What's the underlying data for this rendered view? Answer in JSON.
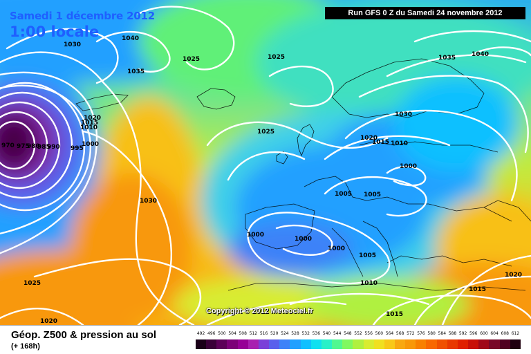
{
  "header": {
    "date": "Samedi 1 décembre 2012",
    "local_time": "1:00 locale",
    "run_info": "Run GFS 0 Z du Samedi 24 novembre 2012"
  },
  "copyright": "Copyright © 2012 Meteociel.fr",
  "footer": {
    "title": "Géop. Z500 & pression au sol",
    "lead_time": "(+ 168h)"
  },
  "scale": {
    "labels": [
      "492",
      "496",
      "500",
      "504",
      "508",
      "512",
      "516",
      "520",
      "524",
      "528",
      "532",
      "536",
      "540",
      "544",
      "548",
      "552",
      "556",
      "560",
      "564",
      "568",
      "572",
      "576",
      "580",
      "584",
      "588",
      "592",
      "596",
      "600",
      "604",
      "608",
      "612"
    ],
    "colors": [
      "#1a0018",
      "#3a0038",
      "#5c0058",
      "#7c0078",
      "#960096",
      "#a820b0",
      "#7a40d8",
      "#5a60ec",
      "#3e82f8",
      "#20a0ff",
      "#10c0ff",
      "#10e0f0",
      "#28f0c8",
      "#50f890",
      "#80f860",
      "#b0f040",
      "#d8ec30",
      "#f0e020",
      "#f8c818",
      "#f8a810",
      "#f89808",
      "#f88000",
      "#f86800",
      "#f05000",
      "#e83800",
      "#e02000",
      "#c81008",
      "#a00818",
      "#780828",
      "#500020",
      "#200010"
    ]
  },
  "isobar_labels": [
    {
      "text": "1030",
      "kind": "pressure"
    },
    {
      "text": "1040",
      "kind": "pressure"
    },
    {
      "text": "1035",
      "kind": "pressure"
    },
    {
      "text": "1025",
      "kind": "pressure"
    },
    {
      "text": "1025",
      "kind": "pressure"
    },
    {
      "text": "1035",
      "kind": "pressure"
    },
    {
      "text": "1040",
      "kind": "pressure"
    },
    {
      "text": "1030",
      "kind": "pressure"
    },
    {
      "text": "1025",
      "kind": "pressure"
    },
    {
      "text": "1020",
      "kind": "pressure"
    },
    {
      "text": "1015",
      "kind": "pressure"
    },
    {
      "text": "1010",
      "kind": "pressure"
    },
    {
      "text": "1020",
      "kind": "pressure"
    },
    {
      "text": "1015",
      "kind": "pressure"
    },
    {
      "text": "1010",
      "kind": "pressure"
    },
    {
      "text": "1000",
      "kind": "pressure"
    },
    {
      "text": "995",
      "kind": "pressure"
    },
    {
      "text": "990",
      "kind": "pressure"
    },
    {
      "text": "985",
      "kind": "pressure"
    },
    {
      "text": "980",
      "kind": "pressure"
    },
    {
      "text": "975",
      "kind": "pressure"
    },
    {
      "text": "970",
      "kind": "pressure"
    },
    {
      "text": "1000",
      "kind": "pressure"
    },
    {
      "text": "1005",
      "kind": "pressure"
    },
    {
      "text": "1005",
      "kind": "pressure"
    },
    {
      "text": "1000",
      "kind": "pressure"
    },
    {
      "text": "1000",
      "kind": "pressure"
    },
    {
      "text": "1000",
      "kind": "pressure"
    },
    {
      "text": "1005",
      "kind": "pressure"
    },
    {
      "text": "1030",
      "kind": "pressure"
    },
    {
      "text": "1010",
      "kind": "pressure"
    },
    {
      "text": "1015",
      "kind": "pressure"
    },
    {
      "text": "1015",
      "kind": "pressure"
    },
    {
      "text": "1020",
      "kind": "pressure"
    },
    {
      "text": "1025",
      "kind": "pressure"
    },
    {
      "text": "1020",
      "kind": "pressure"
    }
  ]
}
